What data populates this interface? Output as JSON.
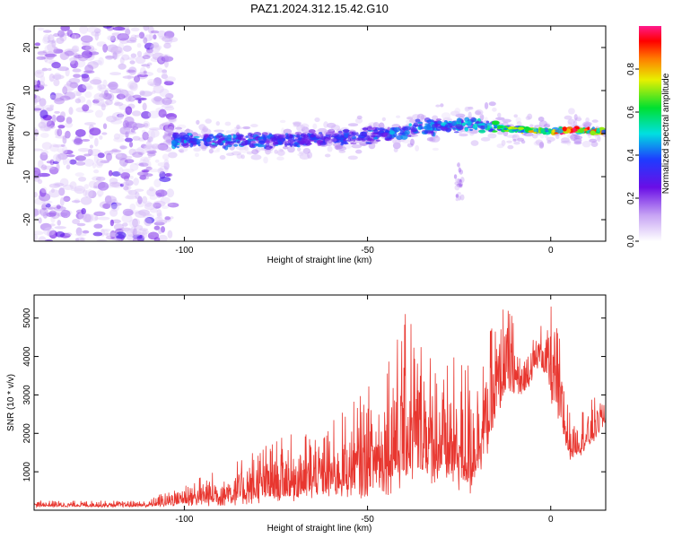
{
  "title": "PAZ1.2024.312.15.42.G10",
  "chart_data": [
    {
      "type": "heatmap",
      "xlabel": "Height of straight line (km)",
      "ylabel": "Frequency (Hz)",
      "xlim": [
        -141,
        15
      ],
      "ylim": [
        -25,
        25
      ],
      "xticks": [
        -100,
        -50,
        0
      ],
      "yticks": [
        -20,
        -10,
        0,
        10,
        20
      ],
      "colorbar": {
        "label": "Normalized spectral amplitude",
        "range": [
          0,
          1
        ],
        "ticks": [
          "0.0",
          "0.2",
          "0.4",
          "0.6",
          "0.8"
        ],
        "tick_values": [
          0,
          0.2,
          0.4,
          0.6,
          0.8
        ],
        "colormap": "white-purple-blue-cyan-green-yellow-orange-red-magenta"
      },
      "features": {
        "noise_region_x": [
          -141,
          -103
        ],
        "signal_band": [
          {
            "x": -100,
            "f": -1.5,
            "a": 0.45
          },
          {
            "x": -90,
            "f": -1.5,
            "a": 0.45
          },
          {
            "x": -80,
            "f": -1.8,
            "a": 0.4
          },
          {
            "x": -70,
            "f": -1.5,
            "a": 0.4
          },
          {
            "x": -60,
            "f": -1.2,
            "a": 0.35
          },
          {
            "x": -50,
            "f": -0.5,
            "a": 0.4
          },
          {
            "x": -40,
            "f": 0.5,
            "a": 0.45
          },
          {
            "x": -30,
            "f": 1.8,
            "a": 0.45
          },
          {
            "x": -20,
            "f": 2.0,
            "a": 0.5
          },
          {
            "x": -10,
            "f": 1.0,
            "a": 0.7
          },
          {
            "x": 0,
            "f": 0.5,
            "a": 0.8
          },
          {
            "x": 5,
            "f": 0.8,
            "a": 1.0
          },
          {
            "x": 15,
            "f": 0.5,
            "a": 0.75
          }
        ],
        "spurious_x": -25,
        "spurious_f": [
          -7,
          -16
        ]
      }
    },
    {
      "type": "line",
      "xlabel": "Height of straight line (km)",
      "ylabel": "SNR (10 * v/v)",
      "xlim": [
        -141,
        15
      ],
      "ylim": [
        0,
        5600
      ],
      "xticks": [
        -100,
        -50,
        0
      ],
      "yticks": [
        1000,
        2000,
        3000,
        4000,
        5000
      ],
      "series": [
        {
          "color": "#e8362f",
          "envelope": [
            {
              "x": -141,
              "lo": 80,
              "hi": 250
            },
            {
              "x": -110,
              "lo": 80,
              "hi": 250
            },
            {
              "x": -100,
              "lo": 100,
              "hi": 800
            },
            {
              "x": -90,
              "lo": 100,
              "hi": 1100
            },
            {
              "x": -80,
              "lo": 150,
              "hi": 1700
            },
            {
              "x": -70,
              "lo": 200,
              "hi": 2000
            },
            {
              "x": -60,
              "lo": 300,
              "hi": 2300
            },
            {
              "x": -50,
              "lo": 300,
              "hi": 3200
            },
            {
              "x": -44,
              "lo": 400,
              "hi": 4500
            },
            {
              "x": -38,
              "lo": 600,
              "hi": 5400
            },
            {
              "x": -30,
              "lo": 700,
              "hi": 3800
            },
            {
              "x": -22,
              "lo": 300,
              "hi": 4200
            },
            {
              "x": -18,
              "lo": 1200,
              "hi": 4500
            },
            {
              "x": -12,
              "lo": 3000,
              "hi": 5600
            },
            {
              "x": -8,
              "lo": 2800,
              "hi": 4200
            },
            {
              "x": -3,
              "lo": 3800,
              "hi": 4800
            },
            {
              "x": 1,
              "lo": 2500,
              "hi": 5600
            },
            {
              "x": 5,
              "lo": 1300,
              "hi": 2600
            },
            {
              "x": 10,
              "lo": 1500,
              "hi": 2800
            },
            {
              "x": 15,
              "lo": 2200,
              "hi": 3200
            }
          ]
        }
      ]
    }
  ]
}
